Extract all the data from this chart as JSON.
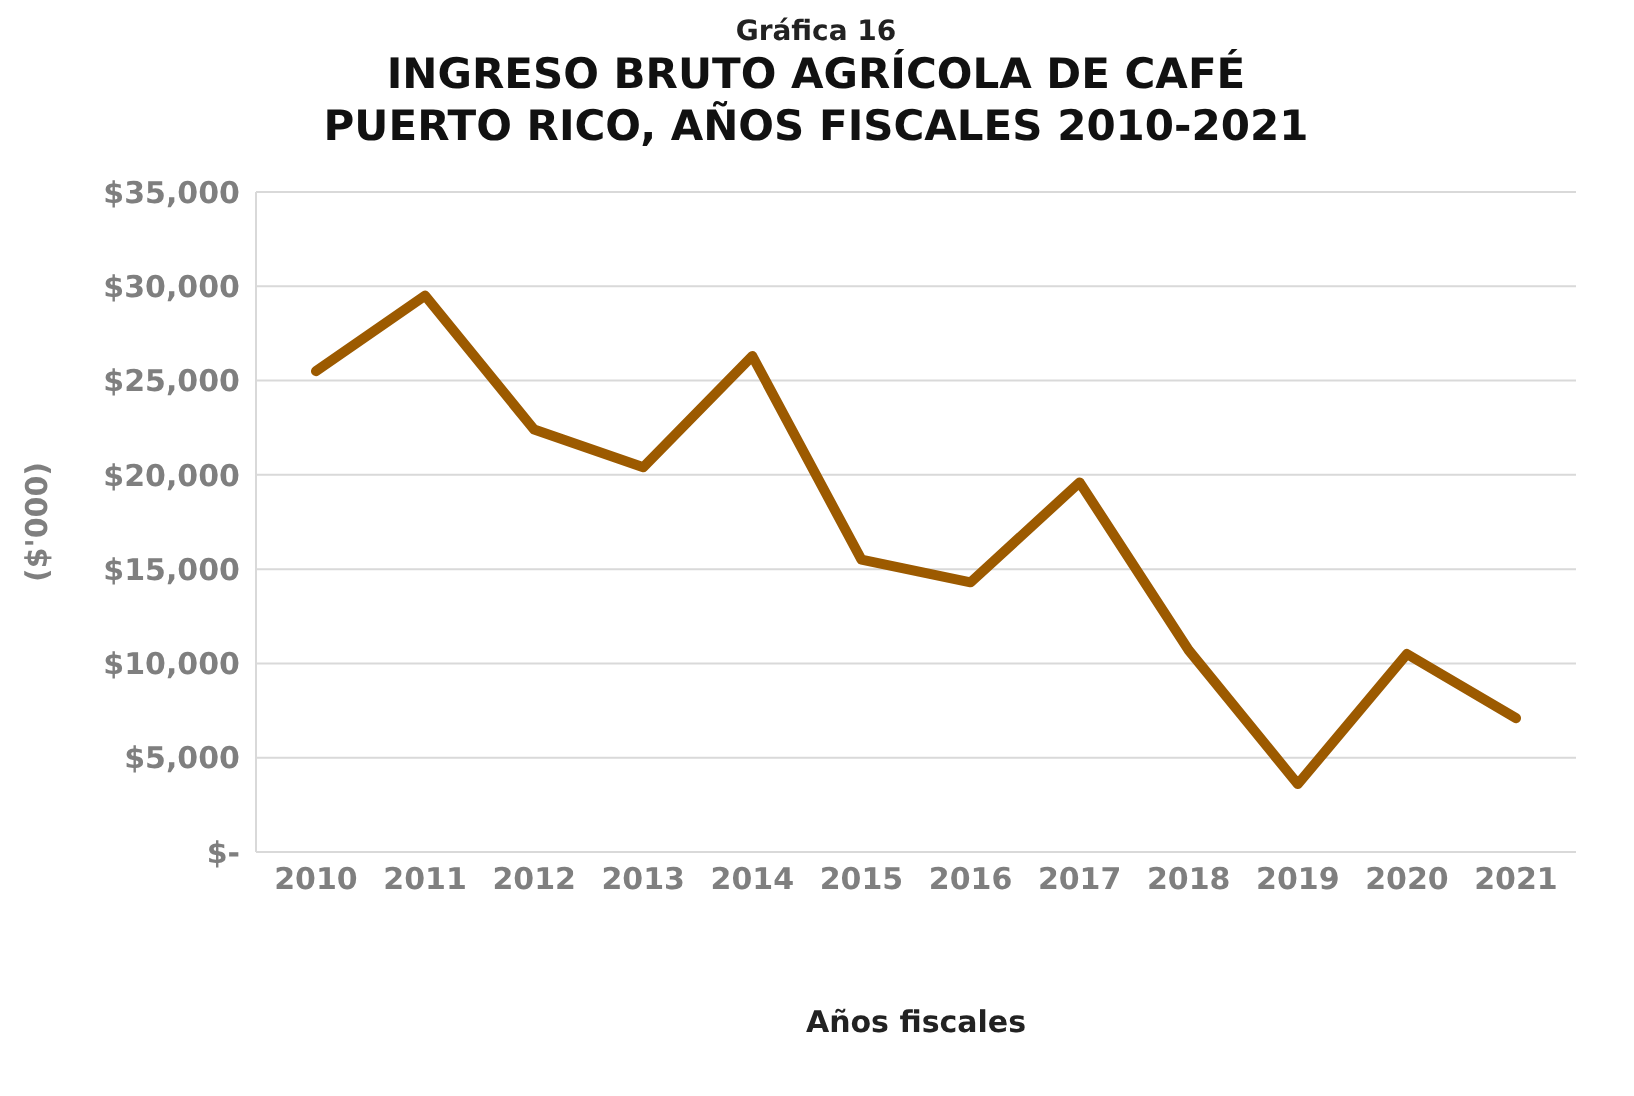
{
  "chart_data": {
    "type": "line",
    "title": "INGRESO BRUTO AGRÍCOLA DE CAFÉ\nPUERTO RICO, AÑOS FISCALES 2010-2021",
    "subtitle": "Gráfica 16",
    "xlabel": "Años fiscales",
    "ylabel": "($'000)",
    "categories": [
      "2010",
      "2011",
      "2012",
      "2013",
      "2014",
      "2015",
      "2016",
      "2017",
      "2018",
      "2019",
      "2020",
      "2021"
    ],
    "series": [
      {
        "color": "#9c5a00",
        "values": [
          25500,
          29500,
          22400,
          20400,
          26300,
          15500,
          14300,
          19600,
          10700,
          3600,
          10500,
          7100
        ]
      }
    ],
    "ylim": [
      0,
      35000
    ],
    "yticks": [
      {
        "value": 0,
        "label": "$-"
      },
      {
        "value": 5000,
        "label": "$5,000"
      },
      {
        "value": 10000,
        "label": "$10,000"
      },
      {
        "value": 15000,
        "label": "$15,000"
      },
      {
        "value": 20000,
        "label": "$20,000"
      },
      {
        "value": 25000,
        "label": "$25,000"
      },
      {
        "value": 30000,
        "label": "$30,000"
      },
      {
        "value": 35000,
        "label": "$35,000"
      }
    ],
    "grid": "y",
    "legend": false,
    "marker": "none",
    "line_style": "solid"
  }
}
